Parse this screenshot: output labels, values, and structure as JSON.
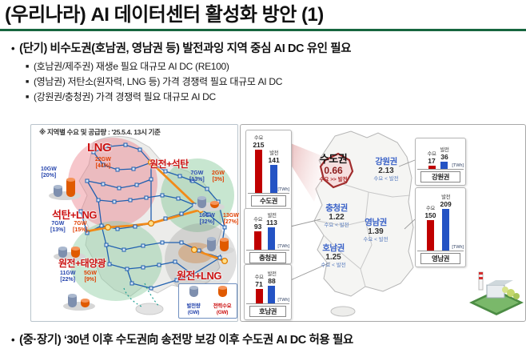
{
  "slide": {
    "title": "(우리나라) AI 데이터센터 활성화 방안 (1)",
    "main_bullet": "(단기) 비수도권(호남권, 영남권 등) 발전과잉 지역 중심 AI DC 유인 필요",
    "sub_bullets": [
      "(호남권/제주권) 재생e 필요 대규모 AI DC (RE100)",
      "(영남권) 저탄소(원자력, LNG 등) 가격 경쟁력 필요 대규모 AI DC",
      "(강원권/충청권) 가격 경쟁력 필요 대규모 AI DC"
    ],
    "bottom_bullet": "(중·장기) ‘30년 이후 수도권向 송전망 보강 이후 수도권 AI DC 허용 필요"
  },
  "grid_map": {
    "note": "※ 지역별 수요 및 공급량 : '25.5.4. 13시 기준",
    "markers": {
      "lng": {
        "label": "LNG",
        "supply": "10GW",
        "supply_pct": "[20%]",
        "demand": "22GW",
        "demand_pct": "[44%]"
      },
      "nuclear_coal": {
        "label": "원전+석탄",
        "supply": "7GW",
        "supply_pct": "[13%]",
        "demand": "2GW",
        "demand_pct": "[3%]"
      },
      "coal_lng": {
        "label": "석탄+LNG",
        "supply": "7GW",
        "supply_pct": "[13%]",
        "demand": "7GW",
        "demand_pct": "[15%]"
      },
      "nuclear_solar": {
        "label": "원전+태양광",
        "supply": "11GW",
        "supply_pct": "[22%]",
        "demand": "5GW",
        "demand_pct": "[9%]"
      },
      "nuclear_lng": {
        "label": "원전+LNG",
        "supply": "16GW",
        "supply_pct": "[32%]",
        "demand": "13GW",
        "demand_pct": "[27%]"
      }
    },
    "legend": {
      "supply_label": "발전량",
      "supply_unit": "(GW)",
      "demand_label": "전력수요",
      "demand_unit": "(GW)"
    }
  },
  "region_map": {
    "regions": [
      {
        "name": "수도권",
        "ratio": "0.66",
        "relation": "수요 >> 발전"
      },
      {
        "name": "강원권",
        "ratio": "2.13",
        "relation": "수요 < 발전"
      },
      {
        "name": "충청권",
        "ratio": "1.22",
        "relation": "수요 < 발전"
      },
      {
        "name": "영남권",
        "ratio": "1.39",
        "relation": "수요 < 발전"
      },
      {
        "name": "호남권",
        "ratio": "1.25",
        "relation": "수요 < 발전"
      }
    ]
  },
  "chart_data": [
    {
      "type": "bar",
      "title": "수도권",
      "categories": [
        "수요",
        "발전"
      ],
      "values": [
        215,
        141
      ],
      "unit": "[TWh]"
    },
    {
      "type": "bar",
      "title": "충청권",
      "categories": [
        "수요",
        "발전"
      ],
      "values": [
        93,
        113
      ],
      "unit": "[TWh]"
    },
    {
      "type": "bar",
      "title": "호남권",
      "categories": [
        "수요",
        "발전"
      ],
      "values": [
        71,
        88
      ],
      "unit": "[TWh]"
    },
    {
      "type": "bar",
      "title": "강원권",
      "categories": [
        "수요",
        "발전"
      ],
      "values": [
        17,
        36
      ],
      "unit": "[TWh]"
    },
    {
      "type": "bar",
      "title": "영남권",
      "categories": [
        "수요",
        "발전"
      ],
      "values": [
        150,
        209
      ],
      "unit": "[TWh]"
    }
  ],
  "colors": {
    "title_rule_green": "#17663e",
    "demand_red": "#c00000",
    "supply_blue": "#2453c4",
    "marker_label_red": "#cc1212",
    "region_name_blue": "#3a62c8",
    "sudo_ratio_red": "#8d1d1d"
  }
}
